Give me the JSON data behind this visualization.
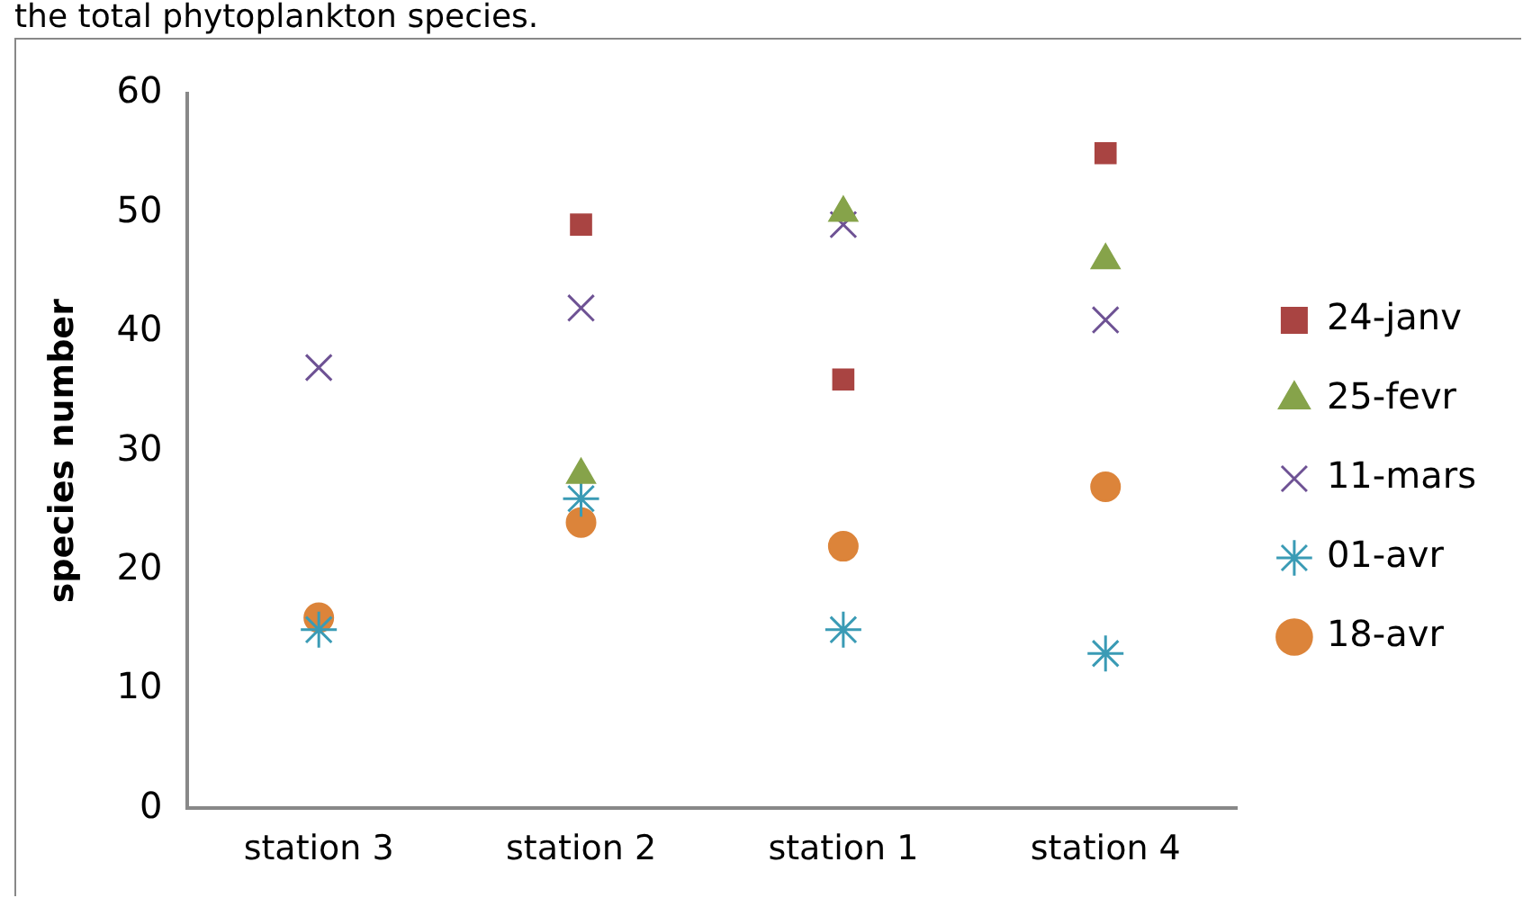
{
  "chart_data": {
    "type": "scatter",
    "annotations": [
      "the total phytoplankton species."
    ],
    "ylabel": "species number",
    "categories": [
      "station 3",
      "station 2",
      "station 1",
      "station 4"
    ],
    "ylim": [
      0,
      60
    ],
    "yticks": [
      0,
      10,
      20,
      30,
      40,
      50,
      60
    ],
    "grid": false,
    "legend": "right",
    "series": [
      {
        "name": "24-janv",
        "color": "#a94442",
        "marker": "square",
        "values": [
          null,
          49,
          36,
          55
        ]
      },
      {
        "name": "25-fevr",
        "color": "#86a34a",
        "marker": "triangle",
        "values": [
          null,
          28,
          50,
          46
        ]
      },
      {
        "name": "11-mars",
        "color": "#6e5294",
        "marker": "cross",
        "values": [
          37,
          42,
          49,
          41
        ]
      },
      {
        "name": "01-avr",
        "color": "#3a9bb5",
        "values": [
          15,
          26,
          15,
          13
        ]
      },
      {
        "name": "18-avr",
        "color": "#dc843a",
        "marker": "circle",
        "values": [
          16,
          24,
          22,
          27
        ]
      }
    ]
  }
}
